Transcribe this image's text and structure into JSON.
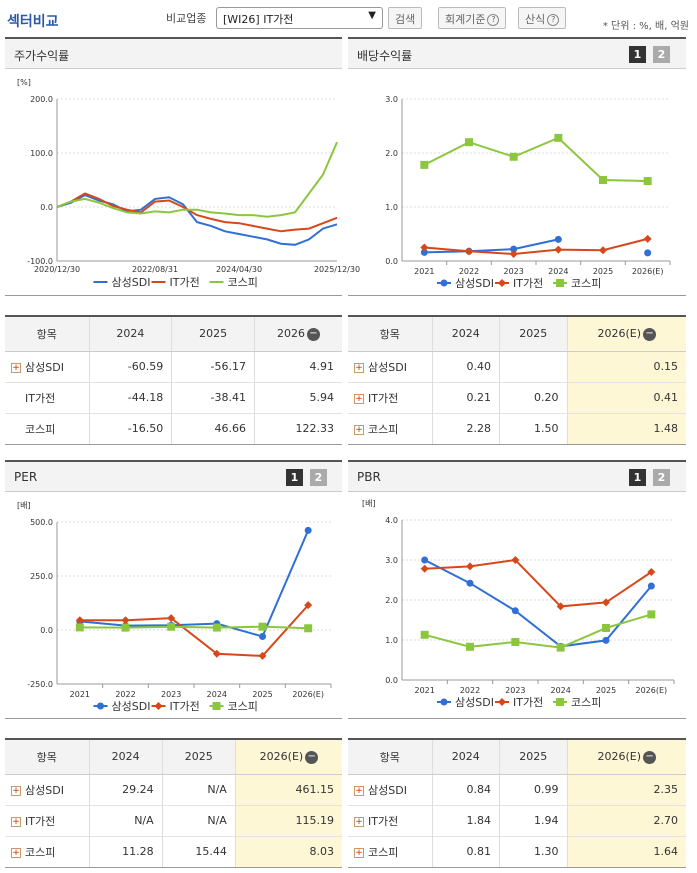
{
  "header": {
    "title": "섹터비교",
    "compare_label": "비교업종",
    "select_value": "[WI26] IT가전",
    "search_btn": "검색",
    "accounting_btn": "회계기준",
    "formula_btn": "산식",
    "help_glyph": "?",
    "unit": "* 단위 : %, 배, 억원"
  },
  "tabs": {
    "one": "1",
    "two": "2"
  },
  "legend": {
    "s1": "삼성SDI",
    "s2": "IT가전",
    "s3": "코스피"
  },
  "colors": {
    "s1": "#2f6fd6",
    "s2": "#d6481a",
    "s3": "#8cc63f"
  },
  "panels": {
    "price": {
      "title": "주가수익률",
      "unit": "[%]",
      "yticks": [
        "200.0",
        "100.0",
        "0.0",
        "-100.0"
      ],
      "xticks": [
        "2020/12/30",
        "2022/08/31",
        "2024/04/30",
        "2025/12/30"
      ]
    },
    "dividend": {
      "title": "배당수익률",
      "yticks": [
        "3.0",
        "2.0",
        "1.0",
        "0.0"
      ],
      "xticks": [
        "2021",
        "2022",
        "2023",
        "2024",
        "2025",
        "2026(E)"
      ]
    },
    "per": {
      "title": "PER",
      "unit": "[배]",
      "yticks": [
        "500.0",
        "250.0",
        "0.0",
        "-250.0"
      ],
      "xticks": [
        "2021",
        "2022",
        "2023",
        "2024",
        "2025",
        "2026(E)"
      ]
    },
    "pbr": {
      "title": "PBR",
      "unit": "[배]",
      "yticks": [
        "4.0",
        "3.0",
        "2.0",
        "1.0",
        "0.0"
      ],
      "xticks": [
        "2021",
        "2022",
        "2023",
        "2024",
        "2025",
        "2026(E)"
      ]
    }
  },
  "chart_data": [
    {
      "type": "line",
      "title": "주가수익률",
      "ylabel": "[%]",
      "ylim": [
        -100,
        200
      ],
      "x": [
        "2020/12",
        "2021/03",
        "2021/06",
        "2021/09",
        "2021/12",
        "2022/03",
        "2022/06",
        "2022/09",
        "2022/12",
        "2023/03",
        "2023/06",
        "2023/09",
        "2023/12",
        "2024/03",
        "2024/06",
        "2024/09",
        "2024/12",
        "2025/03",
        "2025/06",
        "2025/09",
        "2025/12"
      ],
      "series": [
        {
          "name": "삼성SDI",
          "values": [
            0,
            8,
            22,
            12,
            5,
            -8,
            -5,
            15,
            18,
            5,
            -28,
            -35,
            -45,
            -50,
            -55,
            -60,
            -68,
            -70,
            -60,
            -40,
            -32
          ]
        },
        {
          "name": "IT가전",
          "values": [
            0,
            10,
            25,
            15,
            2,
            -5,
            -10,
            10,
            12,
            0,
            -15,
            -22,
            -28,
            -30,
            -35,
            -40,
            -45,
            -42,
            -40,
            -30,
            -20
          ]
        },
        {
          "name": "코스피",
          "values": [
            0,
            10,
            15,
            8,
            -2,
            -10,
            -12,
            -8,
            -10,
            -5,
            -5,
            -10,
            -12,
            -15,
            -15,
            -18,
            -15,
            -10,
            25,
            60,
            120
          ]
        }
      ]
    },
    {
      "type": "line",
      "title": "배당수익률",
      "ylim": [
        0,
        3
      ],
      "categories": [
        "2021",
        "2022",
        "2023",
        "2024",
        "2025",
        "2026(E)"
      ],
      "series": [
        {
          "name": "삼성SDI",
          "values": [
            0.16,
            0.18,
            0.22,
            0.4,
            null,
            0.15
          ]
        },
        {
          "name": "IT가전",
          "values": [
            0.25,
            0.18,
            0.13,
            0.21,
            0.2,
            0.41
          ]
        },
        {
          "name": "코스피",
          "values": [
            1.78,
            2.2,
            1.93,
            2.28,
            1.5,
            1.48
          ]
        }
      ]
    },
    {
      "type": "line",
      "title": "PER",
      "ylabel": "[배]",
      "ylim": [
        -250,
        500
      ],
      "categories": [
        "2021",
        "2022",
        "2023",
        "2024",
        "2025",
        "2026(E)"
      ],
      "series": [
        {
          "name": "삼성SDI",
          "values": [
            40,
            20,
            22,
            29.24,
            -30,
            461.15
          ]
        },
        {
          "name": "IT가전",
          "values": [
            45,
            45,
            55,
            -110,
            -120,
            115.19
          ]
        },
        {
          "name": "코스피",
          "values": [
            12,
            11,
            15,
            11.28,
            15.44,
            8.03
          ]
        }
      ]
    },
    {
      "type": "line",
      "title": "PBR",
      "ylabel": "[배]",
      "ylim": [
        0,
        4
      ],
      "categories": [
        "2021",
        "2022",
        "2023",
        "2024",
        "2025",
        "2026(E)"
      ],
      "series": [
        {
          "name": "삼성SDI",
          "values": [
            3.0,
            2.42,
            1.73,
            0.84,
            0.99,
            2.35
          ]
        },
        {
          "name": "IT가전",
          "values": [
            2.78,
            2.84,
            3.0,
            1.84,
            1.94,
            2.7
          ]
        },
        {
          "name": "코스피",
          "values": [
            1.13,
            0.83,
            0.95,
            0.81,
            1.3,
            1.64
          ]
        }
      ]
    }
  ],
  "tables": {
    "price": {
      "header": [
        "항목",
        "2024",
        "2025",
        "2026"
      ],
      "rows": [
        [
          "삼성SDI",
          "-60.59",
          "-56.17",
          "4.91"
        ],
        [
          "IT가전",
          "-44.18",
          "-38.41",
          "5.94"
        ],
        [
          "코스피",
          "-16.50",
          "46.66",
          "122.33"
        ]
      ]
    },
    "dividend": {
      "header": [
        "항목",
        "2024",
        "2025",
        "2026(E)"
      ],
      "rows": [
        [
          "삼성SDI",
          "0.40",
          "",
          "0.15"
        ],
        [
          "IT가전",
          "0.21",
          "0.20",
          "0.41"
        ],
        [
          "코스피",
          "2.28",
          "1.50",
          "1.48"
        ]
      ]
    },
    "per": {
      "header": [
        "항목",
        "2024",
        "2025",
        "2026(E)"
      ],
      "rows": [
        [
          "삼성SDI",
          "29.24",
          "N/A",
          "461.15"
        ],
        [
          "IT가전",
          "N/A",
          "N/A",
          "115.19"
        ],
        [
          "코스피",
          "11.28",
          "15.44",
          "8.03"
        ]
      ]
    },
    "pbr": {
      "header": [
        "항목",
        "2024",
        "2025",
        "2026(E)"
      ],
      "rows": [
        [
          "삼성SDI",
          "0.84",
          "0.99",
          "2.35"
        ],
        [
          "IT가전",
          "1.84",
          "1.94",
          "2.70"
        ],
        [
          "코스피",
          "0.81",
          "1.30",
          "1.64"
        ]
      ]
    }
  }
}
